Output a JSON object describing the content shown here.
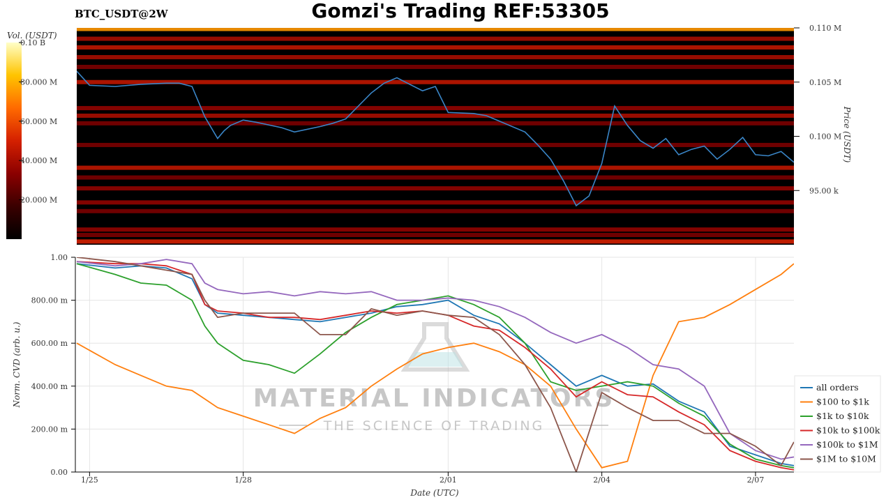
{
  "header": {
    "title": "Gomzi's Trading REF:53305",
    "symbol": "BTC_USDT@2W"
  },
  "watermark": {
    "brand": "MATERIAL INDICATORS",
    "tagline": "THE SCIENCE OF TRADING"
  },
  "chart_data": [
    {
      "type": "heatmap",
      "role": "order-book liquidity heatmap with price line",
      "ylabel": "Price (USDT)",
      "y_ticks": [
        {
          "value": 95000,
          "label": "95.00 k"
        },
        {
          "value": 100000,
          "label": "0.100 M"
        },
        {
          "value": 105000,
          "label": "0.105 M"
        },
        {
          "value": 110000,
          "label": "0.110 M"
        }
      ],
      "ylim": [
        90000,
        110000
      ],
      "colorbar": {
        "label": "Vol. (USDT)",
        "ticks": [
          {
            "value": 20000000,
            "label": "20.000 M"
          },
          {
            "value": 40000000,
            "label": "40.000 M"
          },
          {
            "value": 60000000,
            "label": "60.000 M"
          },
          {
            "value": 80000000,
            "label": "80.000 M"
          },
          {
            "value": 100000000,
            "label": "0.10 B"
          }
        ],
        "range": [
          0,
          100000000
        ],
        "colors": [
          "#000000",
          "#3a0000",
          "#8b0000",
          "#d42000",
          "#ff6a00",
          "#ffc400",
          "#ffffc8"
        ]
      },
      "liquidity_bands": [
        {
          "price": 109900,
          "intensity": 0.75
        },
        {
          "price": 109000,
          "intensity": 0.4
        },
        {
          "price": 108200,
          "intensity": 0.45
        },
        {
          "price": 107300,
          "intensity": 0.4
        },
        {
          "price": 106400,
          "intensity": 0.3
        },
        {
          "price": 105000,
          "intensity": 0.45
        },
        {
          "price": 102600,
          "intensity": 0.35
        },
        {
          "price": 101900,
          "intensity": 0.4
        },
        {
          "price": 101200,
          "intensity": 0.3
        },
        {
          "price": 99200,
          "intensity": 0.3
        },
        {
          "price": 97100,
          "intensity": 0.45
        },
        {
          "price": 96200,
          "intensity": 0.3
        },
        {
          "price": 95200,
          "intensity": 0.35
        },
        {
          "price": 93900,
          "intensity": 0.35
        },
        {
          "price": 93100,
          "intensity": 0.3
        },
        {
          "price": 91400,
          "intensity": 0.35
        },
        {
          "price": 90900,
          "intensity": 0.3
        },
        {
          "price": 90300,
          "intensity": 0.5
        }
      ],
      "price_series": {
        "color": "#3a86c8",
        "x": [
          "1/24 18:00",
          "1/25 00:00",
          "1/25 12:00",
          "1/26 00:00",
          "1/26 12:00",
          "1/26 18:00",
          "1/27 00:00",
          "1/27 06:00",
          "1/27 12:00",
          "1/27 15:00",
          "1/27 18:00",
          "1/28 00:00",
          "1/28 06:00",
          "1/28 18:00",
          "1/29 00:00",
          "1/29 12:00",
          "1/29 18:00",
          "1/30 00:00",
          "1/30 12:00",
          "1/30 18:00",
          "1/31 00:00",
          "1/31 06:00",
          "1/31 12:00",
          "1/31 18:00",
          "2/01 00:00",
          "2/01 12:00",
          "2/01 18:00",
          "2/02 00:00",
          "2/02 12:00",
          "2/02 18:00",
          "2/03 00:00",
          "2/03 06:00",
          "2/03 12:00",
          "2/03 18:00",
          "2/04 00:00",
          "2/04 06:00",
          "2/04 12:00",
          "2/04 18:00",
          "2/05 00:00",
          "2/05 06:00",
          "2/05 12:00",
          "2/05 18:00",
          "2/06 00:00",
          "2/06 06:00",
          "2/06 12:00",
          "2/06 18:00",
          "2/07 00:00",
          "2/07 06:00",
          "2/07 12:00",
          "2/07 18:00"
        ],
        "y": [
          106000,
          104700,
          104600,
          104800,
          104900,
          104900,
          104600,
          101800,
          99800,
          100500,
          101000,
          101500,
          101300,
          100800,
          100400,
          100900,
          101200,
          101600,
          104000,
          104900,
          105400,
          104800,
          104200,
          104600,
          102200,
          102100,
          101900,
          101400,
          100400,
          99200,
          97900,
          95900,
          93600,
          94500,
          97500,
          102800,
          101000,
          99600,
          98900,
          99800,
          98300,
          98800,
          99100,
          97900,
          98800,
          99900,
          98300,
          98200,
          98600,
          97600
        ]
      }
    },
    {
      "type": "line",
      "xlabel": "Date (UTC)",
      "ylabel": "Norm. CVD (arb. u.)",
      "ylim": [
        0,
        1
      ],
      "x_ticks": [
        "1/25",
        "1/28",
        "2/01",
        "2/04",
        "2/07"
      ],
      "y_ticks": [
        {
          "value": 0,
          "label": "0.00"
        },
        {
          "value": 0.2,
          "label": "200.00 m"
        },
        {
          "value": 0.4,
          "label": "400.00 m"
        },
        {
          "value": 0.6,
          "label": "600.00 m"
        },
        {
          "value": 0.8,
          "label": "800.00 m"
        },
        {
          "value": 1.0,
          "label": "1.00"
        }
      ],
      "grid": true,
      "legend_position": "right",
      "x": [
        "1/24 18:00",
        "1/25 12:00",
        "1/26 00:00",
        "1/26 12:00",
        "1/27 00:00",
        "1/27 06:00",
        "1/27 12:00",
        "1/28 00:00",
        "1/28 12:00",
        "1/29 00:00",
        "1/29 12:00",
        "1/30 00:00",
        "1/30 12:00",
        "1/31 00:00",
        "1/31 12:00",
        "2/01 00:00",
        "2/01 12:00",
        "2/02 00:00",
        "2/02 12:00",
        "2/03 00:00",
        "2/03 12:00",
        "2/04 00:00",
        "2/04 12:00",
        "2/05 00:00",
        "2/05 12:00",
        "2/06 00:00",
        "2/06 12:00",
        "2/07 00:00",
        "2/07 12:00",
        "2/07 18:00"
      ],
      "series": [
        {
          "name": "all orders",
          "color": "#1f77b4",
          "values": [
            0.97,
            0.95,
            0.96,
            0.95,
            0.9,
            0.78,
            0.74,
            0.73,
            0.72,
            0.71,
            0.7,
            0.72,
            0.74,
            0.77,
            0.78,
            0.8,
            0.73,
            0.69,
            0.6,
            0.5,
            0.4,
            0.45,
            0.4,
            0.41,
            0.33,
            0.28,
            0.12,
            0.08,
            0.04,
            0.03
          ]
        },
        {
          "name": "$100 to $1k",
          "color": "#ff7f0e",
          "values": [
            0.6,
            0.5,
            0.45,
            0.4,
            0.38,
            0.34,
            0.3,
            0.26,
            0.22,
            0.18,
            0.25,
            0.3,
            0.4,
            0.48,
            0.55,
            0.58,
            0.6,
            0.56,
            0.5,
            0.4,
            0.2,
            0.02,
            0.05,
            0.45,
            0.7,
            0.72,
            0.78,
            0.85,
            0.92,
            0.97
          ]
        },
        {
          "name": "$1k to $10k",
          "color": "#2ca02c",
          "values": [
            0.97,
            0.92,
            0.88,
            0.87,
            0.8,
            0.68,
            0.6,
            0.52,
            0.5,
            0.46,
            0.55,
            0.65,
            0.72,
            0.78,
            0.8,
            0.82,
            0.78,
            0.72,
            0.6,
            0.42,
            0.38,
            0.4,
            0.42,
            0.4,
            0.32,
            0.26,
            0.13,
            0.06,
            0.03,
            0.02
          ]
        },
        {
          "name": "$10k to $100k",
          "color": "#d62728",
          "values": [
            0.98,
            0.97,
            0.97,
            0.96,
            0.92,
            0.78,
            0.75,
            0.74,
            0.72,
            0.72,
            0.71,
            0.73,
            0.75,
            0.74,
            0.75,
            0.73,
            0.68,
            0.66,
            0.58,
            0.48,
            0.35,
            0.42,
            0.36,
            0.35,
            0.28,
            0.22,
            0.1,
            0.05,
            0.02,
            0.01
          ]
        },
        {
          "name": "$100k to $1M",
          "color": "#9467bd",
          "values": [
            0.98,
            0.96,
            0.97,
            0.99,
            0.97,
            0.88,
            0.85,
            0.83,
            0.84,
            0.82,
            0.84,
            0.83,
            0.84,
            0.8,
            0.8,
            0.81,
            0.8,
            0.77,
            0.72,
            0.65,
            0.6,
            0.64,
            0.58,
            0.5,
            0.48,
            0.4,
            0.18,
            0.1,
            0.06,
            0.07
          ]
        },
        {
          "name": "$1M to $10M",
          "color": "#8c564b",
          "values": [
            1.0,
            0.98,
            0.96,
            0.94,
            0.92,
            0.8,
            0.72,
            0.74,
            0.74,
            0.74,
            0.64,
            0.64,
            0.76,
            0.73,
            0.75,
            0.73,
            0.72,
            0.64,
            0.5,
            0.3,
            0.0,
            0.37,
            0.3,
            0.24,
            0.24,
            0.18,
            0.18,
            0.12,
            0.03,
            0.14
          ]
        }
      ]
    }
  ]
}
